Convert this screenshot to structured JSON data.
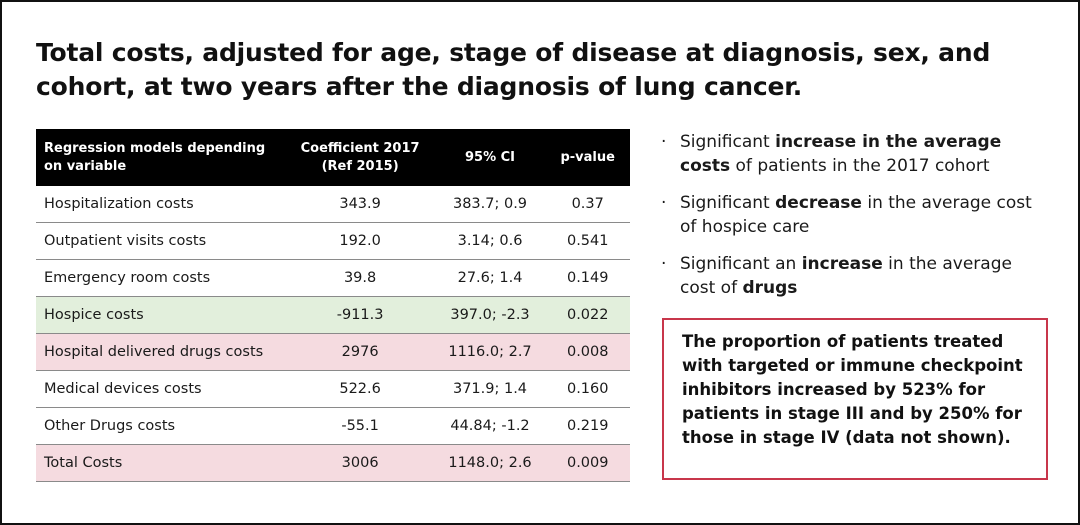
{
  "title": "Total costs, adjusted for age, stage of disease at diagnosis, sex, and cohort, at two years after the diagnosis of lung cancer.",
  "table": {
    "headers": {
      "variable": "Regression models depending on variable",
      "coefficient": "Coefficient 2017 (Ref 2015)",
      "ci": "95% CI",
      "pvalue": "p-value"
    },
    "rows": [
      {
        "variable": "Hospitalization costs",
        "coefficient": "343.9",
        "ci": "383.7; 0.9",
        "pvalue": "0.37",
        "highlight": "none"
      },
      {
        "variable": "Outpatient visits costs",
        "coefficient": "192.0",
        "ci": "3.14; 0.6",
        "pvalue": "0.541",
        "highlight": "none"
      },
      {
        "variable": "Emergency room costs",
        "coefficient": "39.8",
        "ci": "27.6; 1.4",
        "pvalue": "0.149",
        "highlight": "none"
      },
      {
        "variable": "Hospice costs",
        "coefficient": "-911.3",
        "ci": "397.0; -2.3",
        "pvalue": "0.022",
        "highlight": "green"
      },
      {
        "variable": "Hospital delivered drugs costs",
        "coefficient": "2976",
        "ci": "1116.0; 2.7",
        "pvalue": "0.008",
        "highlight": "pink"
      },
      {
        "variable": "Medical devices costs",
        "coefficient": "522.6",
        "ci": "371.9; 1.4",
        "pvalue": "0.160",
        "highlight": "none"
      },
      {
        "variable": "Other Drugs costs",
        "coefficient": "-55.1",
        "ci": "44.84; -1.2",
        "pvalue": "0.219",
        "highlight": "none"
      },
      {
        "variable": "Total Costs",
        "coefficient": "3006",
        "ci": "1148.0; 2.6",
        "pvalue": "0.009",
        "highlight": "pink"
      }
    ]
  },
  "findings": [
    {
      "before": "Significant ",
      "bold": "increase in the average costs",
      "after": " of patients in the 2017 cohort"
    },
    {
      "before": "Significant ",
      "bold": "decrease",
      "after": " in the average cost of hospice care"
    },
    {
      "before": "Significant an ",
      "bold": "increase",
      "after": " in the average cost of ",
      "bold2": "drugs"
    }
  ],
  "bullet_glyph": "·",
  "callout": "The proportion of patients treated with targeted or immune checkpoint inhibitors increased by 523% for patients in stage III and by 250% for those in stage IV (data not shown).",
  "colors": {
    "header_bg": "#000000",
    "green_highlight": "#e2efdc",
    "pink_highlight": "#f5dbe0",
    "callout_border": "#c8364b"
  }
}
